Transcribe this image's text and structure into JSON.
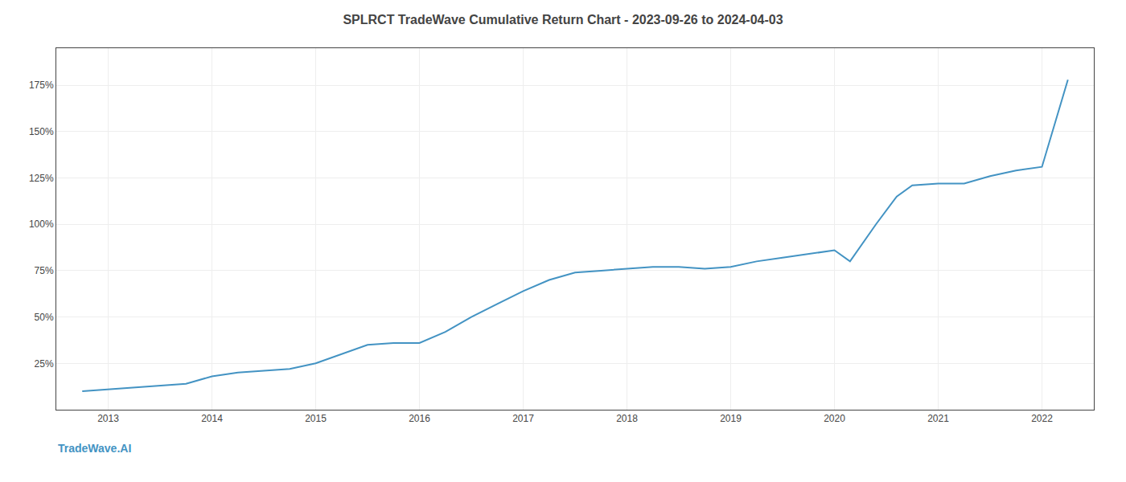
{
  "chart_data": {
    "type": "line",
    "title": "SPLRCT TradeWave Cumulative Return Chart - 2023-09-26 to 2024-04-03",
    "annotations": [
      "TradeWave.AI"
    ],
    "x": [
      2012.75,
      2013.0,
      2013.2,
      2013.5,
      2013.75,
      2014.0,
      2014.25,
      2014.5,
      2014.75,
      2015.0,
      2015.25,
      2015.5,
      2015.75,
      2016.0,
      2016.25,
      2016.5,
      2016.75,
      2017.0,
      2017.25,
      2017.5,
      2017.75,
      2018.0,
      2018.25,
      2018.5,
      2018.75,
      2019.0,
      2019.25,
      2019.5,
      2019.75,
      2019.9,
      2020.0,
      2020.15,
      2020.4,
      2020.6,
      2020.75,
      2021.0,
      2021.25,
      2021.5,
      2021.75,
      2022.0,
      2022.25
    ],
    "values": [
      10,
      11,
      12,
      13,
      14,
      18,
      20,
      21,
      22,
      25,
      30,
      35,
      36,
      36,
      42,
      50,
      57,
      64,
      70,
      74,
      75,
      76,
      77,
      77,
      76,
      77,
      80,
      82,
      84,
      85,
      86,
      80,
      100,
      115,
      121,
      122,
      122,
      126,
      129,
      131,
      178
    ],
    "color": "#4393c3",
    "xlim": [
      2012.5,
      2022.5
    ],
    "xticks": [
      2013,
      2014,
      2015,
      2016,
      2017,
      2018,
      2019,
      2020,
      2021,
      2022
    ],
    "ylim": [
      0,
      195
    ],
    "yticks": [
      {
        "value": 25,
        "label": "25%"
      },
      {
        "value": 50,
        "label": "50%"
      },
      {
        "value": 75,
        "label": "75%"
      },
      {
        "value": 100,
        "label": "100%"
      },
      {
        "value": 125,
        "label": "125%"
      },
      {
        "value": 150,
        "label": "150%"
      },
      {
        "value": 175,
        "label": "175%"
      }
    ],
    "grid": true
  }
}
